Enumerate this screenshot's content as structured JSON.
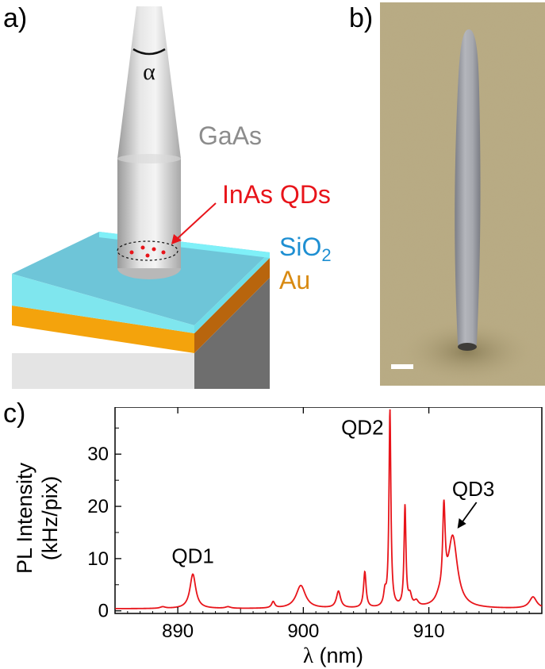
{
  "panel_a": {
    "label": "a)",
    "angle_symbol": "α",
    "nanowire_material": "GaAs",
    "qd_label": "InAs QDs",
    "layer1_text": "SiO",
    "layer1_sub": "2",
    "layer2_label": "Au",
    "colors": {
      "gaas": "#8c8c8c",
      "qd": "#e8141a",
      "sio2": "#1e8fd2",
      "au": "#d88a12"
    }
  },
  "panel_b": {
    "label": "b)"
  },
  "panel_c": {
    "label": "c)",
    "chart_data": {
      "type": "line",
      "xlabel_symbol": "λ",
      "xlabel_unit": "(nm)",
      "ylabel_line1": "PL Intensity",
      "ylabel_line2": "(kHz/pix)",
      "xlim": [
        885,
        919
      ],
      "ylim": [
        -0.5,
        39
      ],
      "xticks": [
        890,
        900,
        910
      ],
      "yticks": [
        0,
        10,
        20,
        30
      ],
      "line_color": "#e8141a",
      "baseline": 0.4,
      "peaks": [
        {
          "x": 888.8,
          "h": 0.3,
          "w": 0.25
        },
        {
          "x": 891.2,
          "h": 6.6,
          "w": 0.28
        },
        {
          "x": 894.0,
          "h": 0.3,
          "w": 0.25
        },
        {
          "x": 897.6,
          "h": 1.2,
          "w": 0.15
        },
        {
          "x": 899.8,
          "h": 4.4,
          "w": 0.45
        },
        {
          "x": 902.8,
          "h": 3.2,
          "w": 0.2
        },
        {
          "x": 904.9,
          "h": 6.9,
          "w": 0.12
        },
        {
          "x": 906.5,
          "h": 2.5,
          "w": 0.12
        },
        {
          "x": 906.9,
          "h": 37.8,
          "w": 0.09
        },
        {
          "x": 908.1,
          "h": 19.3,
          "w": 0.09
        },
        {
          "x": 908.5,
          "h": 2.0,
          "w": 0.15
        },
        {
          "x": 909.0,
          "h": 1.0,
          "w": 0.2
        },
        {
          "x": 911.2,
          "h": 16.5,
          "w": 0.12
        },
        {
          "x": 911.9,
          "h": 13.5,
          "w": 0.45
        },
        {
          "x": 910.8,
          "h": 1.0,
          "w": 0.3
        },
        {
          "x": 918.3,
          "h": 2.2,
          "w": 0.35
        }
      ],
      "annotations": [
        {
          "id": "qd1",
          "text": "QD1",
          "x": 891.2,
          "y": 7.0
        },
        {
          "id": "qd2",
          "text": "QD2",
          "x": 906.9,
          "y": 38.0
        },
        {
          "id": "qd3",
          "text": "QD3",
          "x": 911.9,
          "y": 15.0
        }
      ]
    }
  }
}
